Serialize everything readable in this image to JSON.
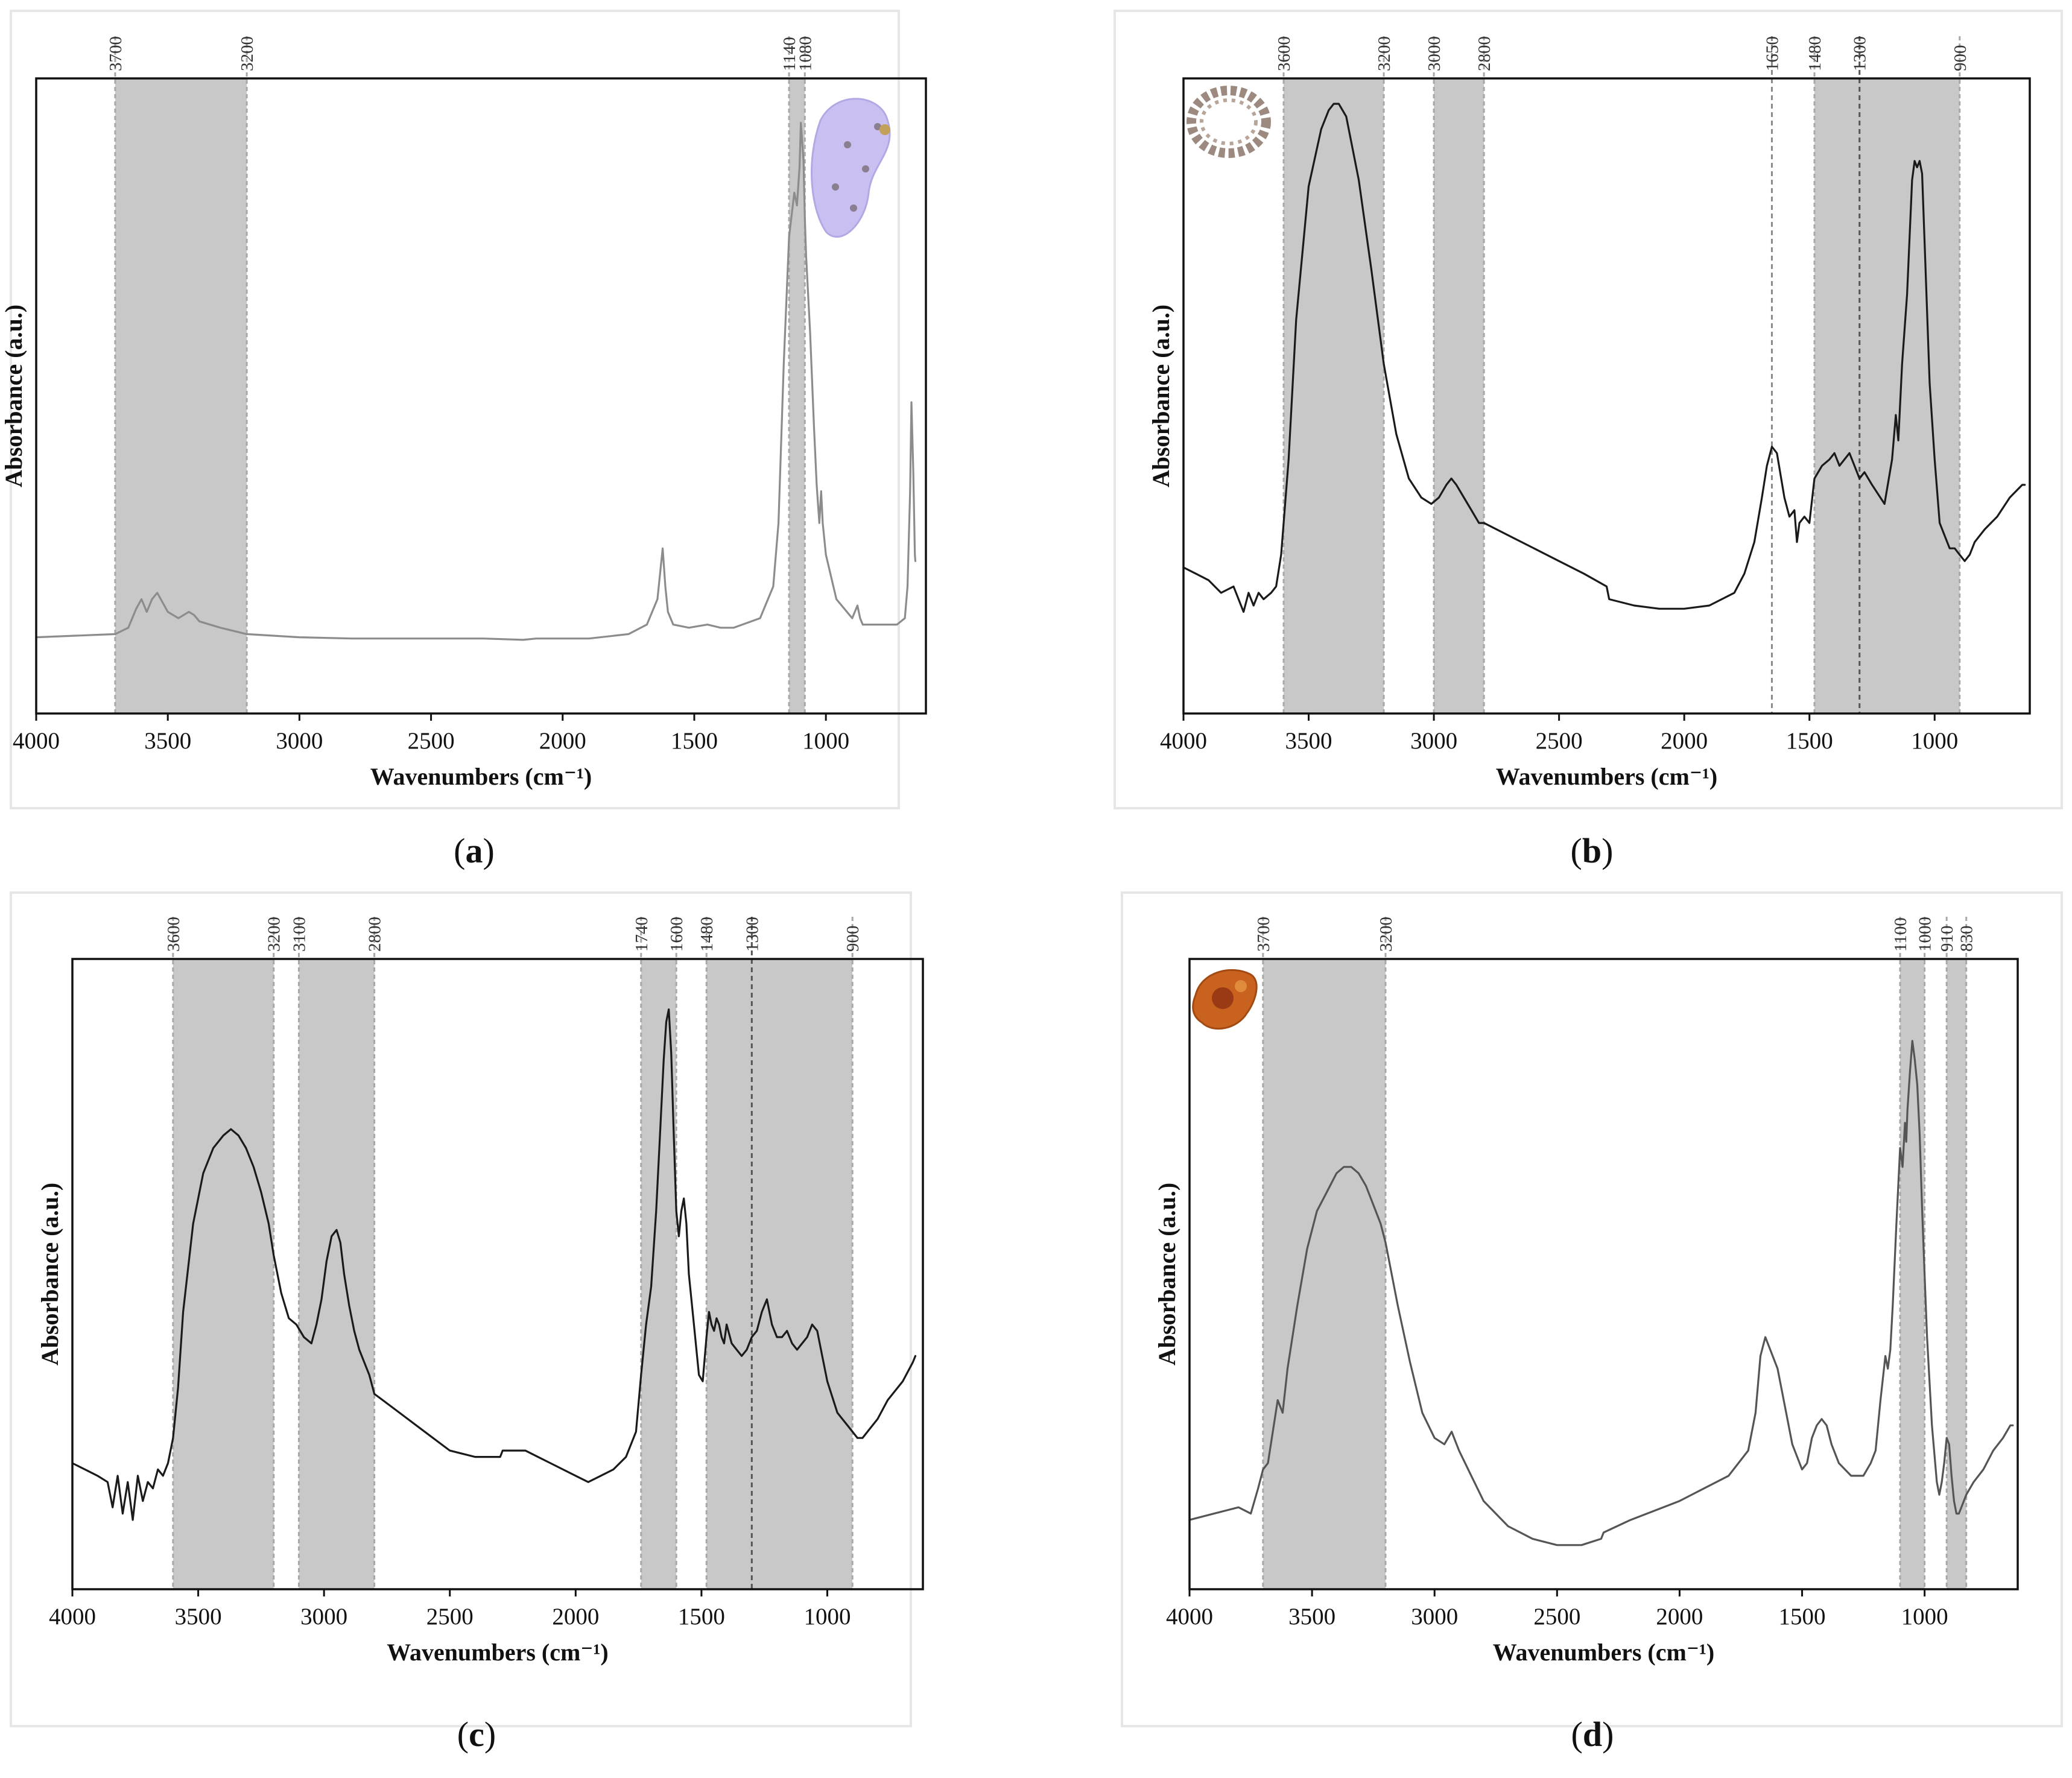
{
  "figure": {
    "kind": "FTIR spectra figure, four panels"
  },
  "chart_data": [
    {
      "id": "a",
      "type": "line",
      "caption_letter": "a",
      "xlabel": "Wavenumbers (cm⁻¹)",
      "ylabel": "Absorbance (a.u.)",
      "xlim": [
        4000,
        620
      ],
      "ylim": [
        0,
        1
      ],
      "x_ticks": [
        "4000",
        "3500",
        "3000",
        "2500",
        "2000",
        "1500",
        "1000"
      ],
      "x_tick_values": [
        4000,
        3500,
        3000,
        2500,
        2000,
        1500,
        1000
      ],
      "shaded_bands": [
        {
          "from": 3700,
          "to": 3200,
          "from_label": "3700",
          "to_label": "3200"
        },
        {
          "from": 1140,
          "to": 1080,
          "from_label": "1140",
          "to_label": "1080"
        }
      ],
      "marker_lines": [],
      "inset": {
        "name": "sample-photo",
        "description": "lilac crystalline sample"
      },
      "colors": {
        "spectrum": "#8c8c8c",
        "inset": "#c9bff0"
      },
      "series": [
        {
          "name": "spectrum",
          "x": [
            4000,
            3700,
            3650,
            3620,
            3600,
            3580,
            3560,
            3540,
            3500,
            3460,
            3420,
            3400,
            3380,
            3300,
            3200,
            3000,
            2800,
            2500,
            2300,
            2150,
            2100,
            1900,
            1750,
            1680,
            1640,
            1620,
            1610,
            1600,
            1580,
            1520,
            1450,
            1400,
            1350,
            1250,
            1200,
            1180,
            1160,
            1140,
            1120,
            1110,
            1100,
            1095,
            1085,
            1080,
            1075,
            1060,
            1045,
            1035,
            1025,
            1018,
            1012,
            1000,
            960,
            900,
            880,
            870,
            860,
            800,
            730,
            700,
            690,
            680,
            675,
            668,
            662,
            660
          ],
          "y": [
            0.12,
            0.125,
            0.135,
            0.165,
            0.18,
            0.16,
            0.18,
            0.19,
            0.16,
            0.15,
            0.16,
            0.155,
            0.145,
            0.135,
            0.125,
            0.12,
            0.118,
            0.118,
            0.118,
            0.116,
            0.118,
            0.118,
            0.125,
            0.14,
            0.18,
            0.26,
            0.2,
            0.16,
            0.14,
            0.135,
            0.14,
            0.135,
            0.135,
            0.15,
            0.2,
            0.3,
            0.55,
            0.75,
            0.82,
            0.8,
            0.86,
            0.93,
            0.87,
            0.78,
            0.72,
            0.6,
            0.45,
            0.36,
            0.3,
            0.35,
            0.3,
            0.25,
            0.18,
            0.15,
            0.17,
            0.15,
            0.14,
            0.14,
            0.14,
            0.15,
            0.2,
            0.35,
            0.49,
            0.38,
            0.25,
            0.24
          ]
        }
      ]
    },
    {
      "id": "b",
      "type": "line",
      "caption_letter": "b",
      "xlabel": "Wavenumbers (cm⁻¹)",
      "ylabel": "Absorbance (a.u.)",
      "xlim": [
        4000,
        620
      ],
      "ylim": [
        0,
        1
      ],
      "x_ticks": [
        "4000",
        "3500",
        "3000",
        "2500",
        "2000",
        "1500",
        "1000"
      ],
      "x_tick_values": [
        4000,
        3500,
        3000,
        2500,
        2000,
        1500,
        1000
      ],
      "shaded_bands": [
        {
          "from": 3600,
          "to": 3200,
          "from_label": "3600",
          "to_label": "3200"
        },
        {
          "from": 3000,
          "to": 2800,
          "from_label": "3000",
          "to_label": "2800"
        },
        {
          "from": 1480,
          "to": 900,
          "from_label": "1480",
          "to_label": "900"
        }
      ],
      "marker_lines": [
        {
          "x": 1650,
          "label": "1650",
          "style": "light"
        },
        {
          "x": 1300,
          "label": "1300",
          "style": "dark"
        }
      ],
      "inset": {
        "name": "sample-photo",
        "description": "brownish ring-shaped sample"
      },
      "colors": {
        "spectrum": "#1a1a1a",
        "inset": "#9c8a80"
      },
      "series": [
        {
          "name": "spectrum",
          "x": [
            4000,
            3950,
            3900,
            3850,
            3800,
            3760,
            3740,
            3720,
            3700,
            3680,
            3650,
            3630,
            3610,
            3580,
            3550,
            3500,
            3450,
            3420,
            3400,
            3380,
            3350,
            3300,
            3250,
            3200,
            3150,
            3100,
            3050,
            3010,
            2980,
            2950,
            2930,
            2910,
            2880,
            2850,
            2820,
            2800,
            2700,
            2600,
            2500,
            2400,
            2310,
            2300,
            2200,
            2100,
            2000,
            1900,
            1800,
            1760,
            1720,
            1690,
            1670,
            1650,
            1630,
            1600,
            1580,
            1560,
            1550,
            1540,
            1520,
            1500,
            1480,
            1450,
            1420,
            1400,
            1380,
            1360,
            1340,
            1320,
            1300,
            1280,
            1250,
            1200,
            1170,
            1155,
            1145,
            1130,
            1110,
            1090,
            1080,
            1070,
            1060,
            1050,
            1040,
            1020,
            1000,
            980,
            960,
            940,
            920,
            900,
            880,
            860,
            840,
            800,
            750,
            700,
            650,
            640
          ],
          "y": [
            0.23,
            0.22,
            0.21,
            0.19,
            0.2,
            0.16,
            0.19,
            0.17,
            0.19,
            0.18,
            0.19,
            0.2,
            0.25,
            0.4,
            0.62,
            0.83,
            0.92,
            0.95,
            0.96,
            0.96,
            0.94,
            0.84,
            0.7,
            0.55,
            0.44,
            0.37,
            0.34,
            0.33,
            0.34,
            0.36,
            0.37,
            0.36,
            0.34,
            0.32,
            0.3,
            0.3,
            0.28,
            0.26,
            0.24,
            0.22,
            0.2,
            0.18,
            0.17,
            0.165,
            0.165,
            0.17,
            0.19,
            0.22,
            0.27,
            0.34,
            0.39,
            0.42,
            0.41,
            0.34,
            0.31,
            0.32,
            0.27,
            0.3,
            0.31,
            0.3,
            0.37,
            0.39,
            0.4,
            0.41,
            0.39,
            0.4,
            0.41,
            0.39,
            0.37,
            0.38,
            0.36,
            0.33,
            0.4,
            0.47,
            0.43,
            0.55,
            0.66,
            0.84,
            0.87,
            0.86,
            0.87,
            0.85,
            0.74,
            0.52,
            0.4,
            0.3,
            0.28,
            0.26,
            0.26,
            0.25,
            0.24,
            0.25,
            0.27,
            0.29,
            0.31,
            0.34,
            0.36,
            0.36
          ]
        }
      ]
    },
    {
      "id": "c",
      "type": "line",
      "caption_letter": "c",
      "xlabel": "Wavenumbers (cm⁻¹)",
      "ylabel": "Absorbance (a.u.)",
      "xlim": [
        4000,
        620
      ],
      "ylim": [
        0,
        1
      ],
      "x_ticks": [
        "4000",
        "3500",
        "3000",
        "2500",
        "2000",
        "1500",
        "1000"
      ],
      "x_tick_values": [
        4000,
        3500,
        3000,
        2500,
        2000,
        1500,
        1000
      ],
      "shaded_bands": [
        {
          "from": 3600,
          "to": 3200,
          "from_label": "3600",
          "to_label": "3200"
        },
        {
          "from": 3100,
          "to": 2800,
          "from_label": "3100",
          "to_label": "2800"
        },
        {
          "from": 1740,
          "to": 1600,
          "from_label": "1740",
          "to_label": "1600"
        },
        {
          "from": 1480,
          "to": 900,
          "from_label": "1480",
          "to_label": "900"
        }
      ],
      "marker_lines": [
        {
          "x": 1300,
          "label": "1300",
          "style": "dark"
        }
      ],
      "inset": null,
      "colors": {
        "spectrum": "#1a1a1a"
      },
      "series": [
        {
          "name": "spectrum",
          "x": [
            4000,
            3950,
            3900,
            3860,
            3840,
            3820,
            3800,
            3780,
            3760,
            3740,
            3720,
            3700,
            3680,
            3660,
            3640,
            3620,
            3600,
            3580,
            3560,
            3520,
            3480,
            3440,
            3400,
            3370,
            3340,
            3310,
            3280,
            3250,
            3220,
            3200,
            3170,
            3140,
            3110,
            3080,
            3050,
            3030,
            3010,
            2990,
            2970,
            2950,
            2935,
            2920,
            2900,
            2880,
            2860,
            2840,
            2820,
            2800,
            2700,
            2600,
            2500,
            2400,
            2300,
            2290,
            2200,
            2100,
            2000,
            1950,
            1900,
            1850,
            1800,
            1760,
            1740,
            1720,
            1700,
            1680,
            1665,
            1650,
            1640,
            1630,
            1620,
            1610,
            1600,
            1590,
            1580,
            1570,
            1560,
            1550,
            1530,
            1510,
            1495,
            1480,
            1470,
            1460,
            1450,
            1440,
            1430,
            1420,
            1410,
            1400,
            1380,
            1360,
            1340,
            1320,
            1300,
            1280,
            1260,
            1240,
            1230,
            1220,
            1200,
            1180,
            1160,
            1140,
            1120,
            1100,
            1080,
            1060,
            1040,
            1020,
            1000,
            960,
            920,
            900,
            880,
            860,
            840,
            800,
            760,
            700,
            660,
            650
          ],
          "y": [
            0.2,
            0.19,
            0.18,
            0.17,
            0.13,
            0.18,
            0.12,
            0.17,
            0.11,
            0.18,
            0.14,
            0.17,
            0.16,
            0.19,
            0.18,
            0.2,
            0.24,
            0.32,
            0.44,
            0.58,
            0.66,
            0.7,
            0.72,
            0.73,
            0.72,
            0.7,
            0.67,
            0.63,
            0.58,
            0.53,
            0.47,
            0.43,
            0.42,
            0.4,
            0.39,
            0.42,
            0.46,
            0.52,
            0.56,
            0.57,
            0.55,
            0.5,
            0.45,
            0.41,
            0.38,
            0.36,
            0.34,
            0.31,
            0.28,
            0.25,
            0.22,
            0.21,
            0.21,
            0.22,
            0.22,
            0.2,
            0.18,
            0.17,
            0.18,
            0.19,
            0.21,
            0.25,
            0.34,
            0.42,
            0.48,
            0.6,
            0.72,
            0.84,
            0.9,
            0.92,
            0.85,
            0.72,
            0.6,
            0.56,
            0.6,
            0.62,
            0.58,
            0.5,
            0.42,
            0.34,
            0.33,
            0.4,
            0.44,
            0.42,
            0.41,
            0.43,
            0.42,
            0.4,
            0.39,
            0.42,
            0.39,
            0.38,
            0.37,
            0.38,
            0.4,
            0.41,
            0.44,
            0.46,
            0.44,
            0.42,
            0.4,
            0.4,
            0.41,
            0.39,
            0.38,
            0.39,
            0.4,
            0.42,
            0.41,
            0.37,
            0.33,
            0.28,
            0.26,
            0.25,
            0.24,
            0.24,
            0.25,
            0.27,
            0.3,
            0.33,
            0.36,
            0.37
          ]
        }
      ]
    },
    {
      "id": "d",
      "type": "line",
      "caption_letter": "d",
      "xlabel": "Wavenumbers (cm⁻¹)",
      "ylabel": "Absorbance (a.u.)",
      "xlim": [
        4000,
        620
      ],
      "ylim": [
        0,
        1
      ],
      "x_ticks": [
        "4000",
        "3500",
        "3000",
        "2500",
        "2000",
        "1500",
        "1000"
      ],
      "x_tick_values": [
        4000,
        3500,
        3000,
        2500,
        2000,
        1500,
        1000
      ],
      "shaded_bands": [
        {
          "from": 3700,
          "to": 3200,
          "from_label": "3700",
          "to_label": "3200"
        },
        {
          "from": 1100,
          "to": 1000,
          "from_label": "1100",
          "to_label": "1000"
        },
        {
          "from": 910,
          "to": 830,
          "from_label": "910",
          "to_label": "830"
        }
      ],
      "marker_lines": [],
      "inset": {
        "name": "sample-photo",
        "description": "orange-brown resin fragment"
      },
      "colors": {
        "spectrum": "#555555",
        "inset": "#c8621e"
      },
      "series": [
        {
          "name": "spectrum",
          "x": [
            4000,
            3900,
            3800,
            3750,
            3720,
            3700,
            3680,
            3660,
            3640,
            3620,
            3600,
            3560,
            3520,
            3480,
            3440,
            3400,
            3370,
            3340,
            3310,
            3280,
            3250,
            3220,
            3200,
            3150,
            3100,
            3050,
            3000,
            2960,
            2930,
            2900,
            2850,
            2800,
            2700,
            2600,
            2500,
            2400,
            2320,
            2310,
            2200,
            2000,
            1900,
            1800,
            1720,
            1690,
            1670,
            1650,
            1640,
            1620,
            1600,
            1570,
            1540,
            1500,
            1480,
            1460,
            1440,
            1420,
            1400,
            1380,
            1350,
            1300,
            1250,
            1220,
            1200,
            1180,
            1160,
            1150,
            1140,
            1130,
            1115,
            1100,
            1090,
            1080,
            1075,
            1070,
            1060,
            1050,
            1040,
            1030,
            1020,
            1010,
            1000,
            990,
            970,
            950,
            940,
            930,
            920,
            910,
            900,
            890,
            880,
            870,
            860,
            850,
            830,
            800,
            760,
            720,
            680,
            650,
            640
          ],
          "y": [
            0.11,
            0.12,
            0.13,
            0.12,
            0.16,
            0.19,
            0.2,
            0.25,
            0.3,
            0.28,
            0.35,
            0.45,
            0.54,
            0.6,
            0.63,
            0.66,
            0.67,
            0.67,
            0.66,
            0.64,
            0.61,
            0.58,
            0.55,
            0.45,
            0.36,
            0.28,
            0.24,
            0.23,
            0.25,
            0.22,
            0.18,
            0.14,
            0.1,
            0.08,
            0.07,
            0.07,
            0.08,
            0.09,
            0.11,
            0.14,
            0.16,
            0.18,
            0.22,
            0.28,
            0.37,
            0.4,
            0.39,
            0.37,
            0.35,
            0.29,
            0.23,
            0.19,
            0.2,
            0.24,
            0.26,
            0.27,
            0.26,
            0.23,
            0.2,
            0.18,
            0.18,
            0.2,
            0.22,
            0.3,
            0.37,
            0.35,
            0.38,
            0.45,
            0.58,
            0.7,
            0.67,
            0.74,
            0.71,
            0.76,
            0.82,
            0.87,
            0.84,
            0.8,
            0.72,
            0.6,
            0.5,
            0.4,
            0.26,
            0.17,
            0.15,
            0.17,
            0.2,
            0.24,
            0.23,
            0.18,
            0.14,
            0.12,
            0.12,
            0.13,
            0.15,
            0.17,
            0.19,
            0.22,
            0.24,
            0.26,
            0.26
          ]
        }
      ]
    }
  ]
}
